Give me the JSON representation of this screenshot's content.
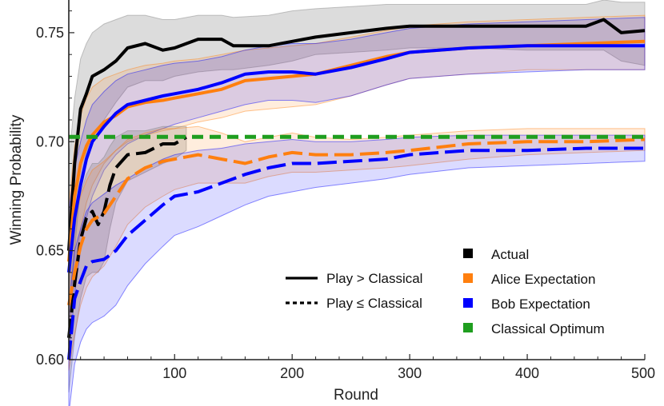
{
  "chart_data": {
    "type": "line",
    "xlabel": "Round",
    "ylabel": "Winning Probability",
    "xlim": [
      10,
      500
    ],
    "ylim": [
      0.6,
      0.765
    ],
    "x_ticks": [
      100,
      200,
      300,
      400,
      500
    ],
    "y_ticks": [
      0.6,
      0.65,
      0.7,
      0.75
    ],
    "y_tick_labels": [
      "0.60",
      "0.65",
      "0.70",
      "0.75"
    ],
    "grid": false,
    "legend": {
      "placement": "bottom-right",
      "style_entries": [
        {
          "label": "Play > Classical",
          "dash": "solid"
        },
        {
          "label": "Play ≤ Classical",
          "dash": "dotted"
        }
      ],
      "color_entries": [
        {
          "label": "Actual",
          "color": "#000000"
        },
        {
          "label": "Alice Expectation",
          "color": "#ff7f0e"
        },
        {
          "label": "Bob Expectation",
          "color": "#0000ff"
        },
        {
          "label": "Classical Optimum",
          "color": "#1f9e1f"
        }
      ]
    },
    "series": [
      {
        "name": "Actual",
        "style": "solid",
        "color": "#000000",
        "band_color": "#808080",
        "x": [
          10,
          15,
          20,
          25,
          30,
          40,
          50,
          60,
          75,
          90,
          100,
          120,
          140,
          150,
          180,
          200,
          220,
          250,
          280,
          300,
          350,
          400,
          450,
          465,
          480,
          500
        ],
        "y": [
          0.65,
          0.69,
          0.715,
          0.722,
          0.73,
          0.733,
          0.737,
          0.743,
          0.745,
          0.742,
          0.743,
          0.747,
          0.747,
          0.744,
          0.744,
          0.746,
          0.748,
          0.75,
          0.752,
          0.753,
          0.753,
          0.753,
          0.753,
          0.756,
          0.75,
          0.751
        ],
        "lower": [
          0.615,
          0.65,
          0.68,
          0.695,
          0.703,
          0.71,
          0.718,
          0.725,
          0.728,
          0.728,
          0.73,
          0.732,
          0.733,
          0.733,
          0.735,
          0.737,
          0.74,
          0.741,
          0.742,
          0.743,
          0.743,
          0.742,
          0.742,
          0.742,
          0.737,
          0.735
        ],
        "upper": [
          0.69,
          0.72,
          0.738,
          0.745,
          0.75,
          0.754,
          0.756,
          0.758,
          0.758,
          0.756,
          0.756,
          0.758,
          0.758,
          0.757,
          0.758,
          0.76,
          0.761,
          0.762,
          0.763,
          0.763,
          0.763,
          0.763,
          0.763,
          0.765,
          0.764,
          0.764
        ]
      },
      {
        "name": "Alice Expectation",
        "style": "solid",
        "color": "#ff7f0e",
        "band_color": "#ff7f0e",
        "x": [
          10,
          15,
          20,
          25,
          30,
          40,
          50,
          60,
          75,
          90,
          100,
          120,
          140,
          160,
          180,
          200,
          220,
          250,
          280,
          300,
          350,
          400,
          450,
          500
        ],
        "y": [
          0.645,
          0.675,
          0.69,
          0.698,
          0.703,
          0.709,
          0.712,
          0.716,
          0.718,
          0.719,
          0.72,
          0.722,
          0.724,
          0.728,
          0.729,
          0.73,
          0.731,
          0.735,
          0.739,
          0.741,
          0.743,
          0.744,
          0.745,
          0.746
        ],
        "lower": [
          0.61,
          0.64,
          0.66,
          0.672,
          0.68,
          0.69,
          0.696,
          0.7,
          0.703,
          0.705,
          0.706,
          0.709,
          0.711,
          0.714,
          0.715,
          0.716,
          0.717,
          0.721,
          0.726,
          0.729,
          0.731,
          0.733,
          0.733,
          0.733
        ],
        "upper": [
          0.67,
          0.698,
          0.712,
          0.72,
          0.725,
          0.729,
          0.731,
          0.733,
          0.735,
          0.736,
          0.737,
          0.738,
          0.74,
          0.742,
          0.743,
          0.744,
          0.745,
          0.748,
          0.751,
          0.753,
          0.755,
          0.756,
          0.757,
          0.758
        ]
      },
      {
        "name": "Bob Expectation",
        "style": "solid",
        "color": "#0000ff",
        "band_color": "#0000ff",
        "x": [
          10,
          15,
          20,
          25,
          30,
          40,
          50,
          60,
          75,
          90,
          100,
          120,
          140,
          160,
          180,
          200,
          220,
          250,
          280,
          300,
          350,
          400,
          450,
          500
        ],
        "y": [
          0.64,
          0.665,
          0.68,
          0.692,
          0.7,
          0.707,
          0.713,
          0.717,
          0.719,
          0.721,
          0.722,
          0.724,
          0.727,
          0.731,
          0.732,
          0.732,
          0.731,
          0.734,
          0.738,
          0.741,
          0.743,
          0.744,
          0.744,
          0.744
        ],
        "lower": [
          0.6,
          0.63,
          0.65,
          0.665,
          0.675,
          0.687,
          0.694,
          0.699,
          0.703,
          0.706,
          0.708,
          0.711,
          0.714,
          0.717,
          0.719,
          0.719,
          0.718,
          0.721,
          0.726,
          0.729,
          0.731,
          0.732,
          0.733,
          0.733
        ],
        "upper": [
          0.668,
          0.688,
          0.7,
          0.71,
          0.717,
          0.723,
          0.728,
          0.731,
          0.733,
          0.735,
          0.736,
          0.737,
          0.739,
          0.742,
          0.744,
          0.745,
          0.745,
          0.747,
          0.75,
          0.752,
          0.754,
          0.755,
          0.756,
          0.757
        ]
      },
      {
        "name": "Actual",
        "style": "dotted",
        "color": "#000000",
        "band_color": "#808080",
        "x": [
          10,
          15,
          20,
          25,
          30,
          35,
          40,
          45,
          50,
          60,
          75,
          90,
          100,
          110
        ],
        "y": [
          0.61,
          0.635,
          0.655,
          0.665,
          0.668,
          0.662,
          0.668,
          0.68,
          0.688,
          0.694,
          0.695,
          0.699,
          0.699,
          0.702
        ],
        "lower": [
          0.585,
          0.61,
          0.628,
          0.638,
          0.64,
          0.64,
          0.645,
          0.66,
          0.672,
          0.682,
          0.686,
          0.69,
          0.692,
          0.696
        ],
        "upper": [
          0.64,
          0.66,
          0.676,
          0.685,
          0.69,
          0.69,
          0.693,
          0.698,
          0.702,
          0.705,
          0.705,
          0.707,
          0.707,
          0.707
        ]
      },
      {
        "name": "Alice Expectation",
        "style": "dotted",
        "color": "#ff7f0e",
        "band_color": "#ff7f0e",
        "x": [
          10,
          15,
          20,
          25,
          30,
          40,
          50,
          60,
          75,
          90,
          100,
          120,
          140,
          160,
          180,
          200,
          220,
          250,
          280,
          300,
          350,
          400,
          450,
          500
        ],
        "y": [
          0.625,
          0.64,
          0.652,
          0.66,
          0.664,
          0.667,
          0.675,
          0.683,
          0.688,
          0.691,
          0.692,
          0.694,
          0.692,
          0.69,
          0.693,
          0.695,
          0.694,
          0.694,
          0.695,
          0.696,
          0.699,
          0.7,
          0.7,
          0.701
        ],
        "lower": [
          0.595,
          0.612,
          0.625,
          0.633,
          0.638,
          0.643,
          0.652,
          0.662,
          0.67,
          0.675,
          0.678,
          0.681,
          0.681,
          0.681,
          0.684,
          0.686,
          0.686,
          0.687,
          0.688,
          0.689,
          0.692,
          0.694,
          0.695,
          0.696
        ],
        "upper": [
          0.652,
          0.665,
          0.675,
          0.682,
          0.687,
          0.691,
          0.696,
          0.701,
          0.704,
          0.706,
          0.706,
          0.707,
          0.704,
          0.7,
          0.702,
          0.704,
          0.702,
          0.701,
          0.702,
          0.703,
          0.705,
          0.706,
          0.706,
          0.706
        ]
      },
      {
        "name": "Bob Expectation",
        "style": "dotted",
        "color": "#0000ff",
        "band_color": "#0000ff",
        "x": [
          10,
          15,
          20,
          25,
          30,
          40,
          50,
          60,
          75,
          90,
          100,
          120,
          140,
          160,
          180,
          200,
          220,
          250,
          280,
          300,
          350,
          400,
          450,
          500
        ],
        "y": [
          0.6,
          0.628,
          0.636,
          0.643,
          0.645,
          0.646,
          0.65,
          0.657,
          0.664,
          0.671,
          0.675,
          0.677,
          0.681,
          0.685,
          0.688,
          0.69,
          0.69,
          0.691,
          0.692,
          0.694,
          0.696,
          0.696,
          0.697,
          0.697
        ],
        "lower": [
          0.575,
          0.598,
          0.608,
          0.614,
          0.617,
          0.62,
          0.625,
          0.634,
          0.644,
          0.652,
          0.657,
          0.661,
          0.666,
          0.671,
          0.675,
          0.677,
          0.679,
          0.681,
          0.683,
          0.685,
          0.688,
          0.689,
          0.69,
          0.691
        ],
        "upper": [
          0.625,
          0.65,
          0.66,
          0.668,
          0.672,
          0.676,
          0.68,
          0.683,
          0.688,
          0.692,
          0.694,
          0.696,
          0.697,
          0.699,
          0.7,
          0.701,
          0.7,
          0.7,
          0.701,
          0.702,
          0.703,
          0.703,
          0.703,
          0.703
        ]
      },
      {
        "name": "Classical Optimum",
        "style": "dashed",
        "color": "#1f9e1f",
        "x": [
          10,
          500
        ],
        "y": [
          0.7022,
          0.7022
        ]
      }
    ]
  }
}
